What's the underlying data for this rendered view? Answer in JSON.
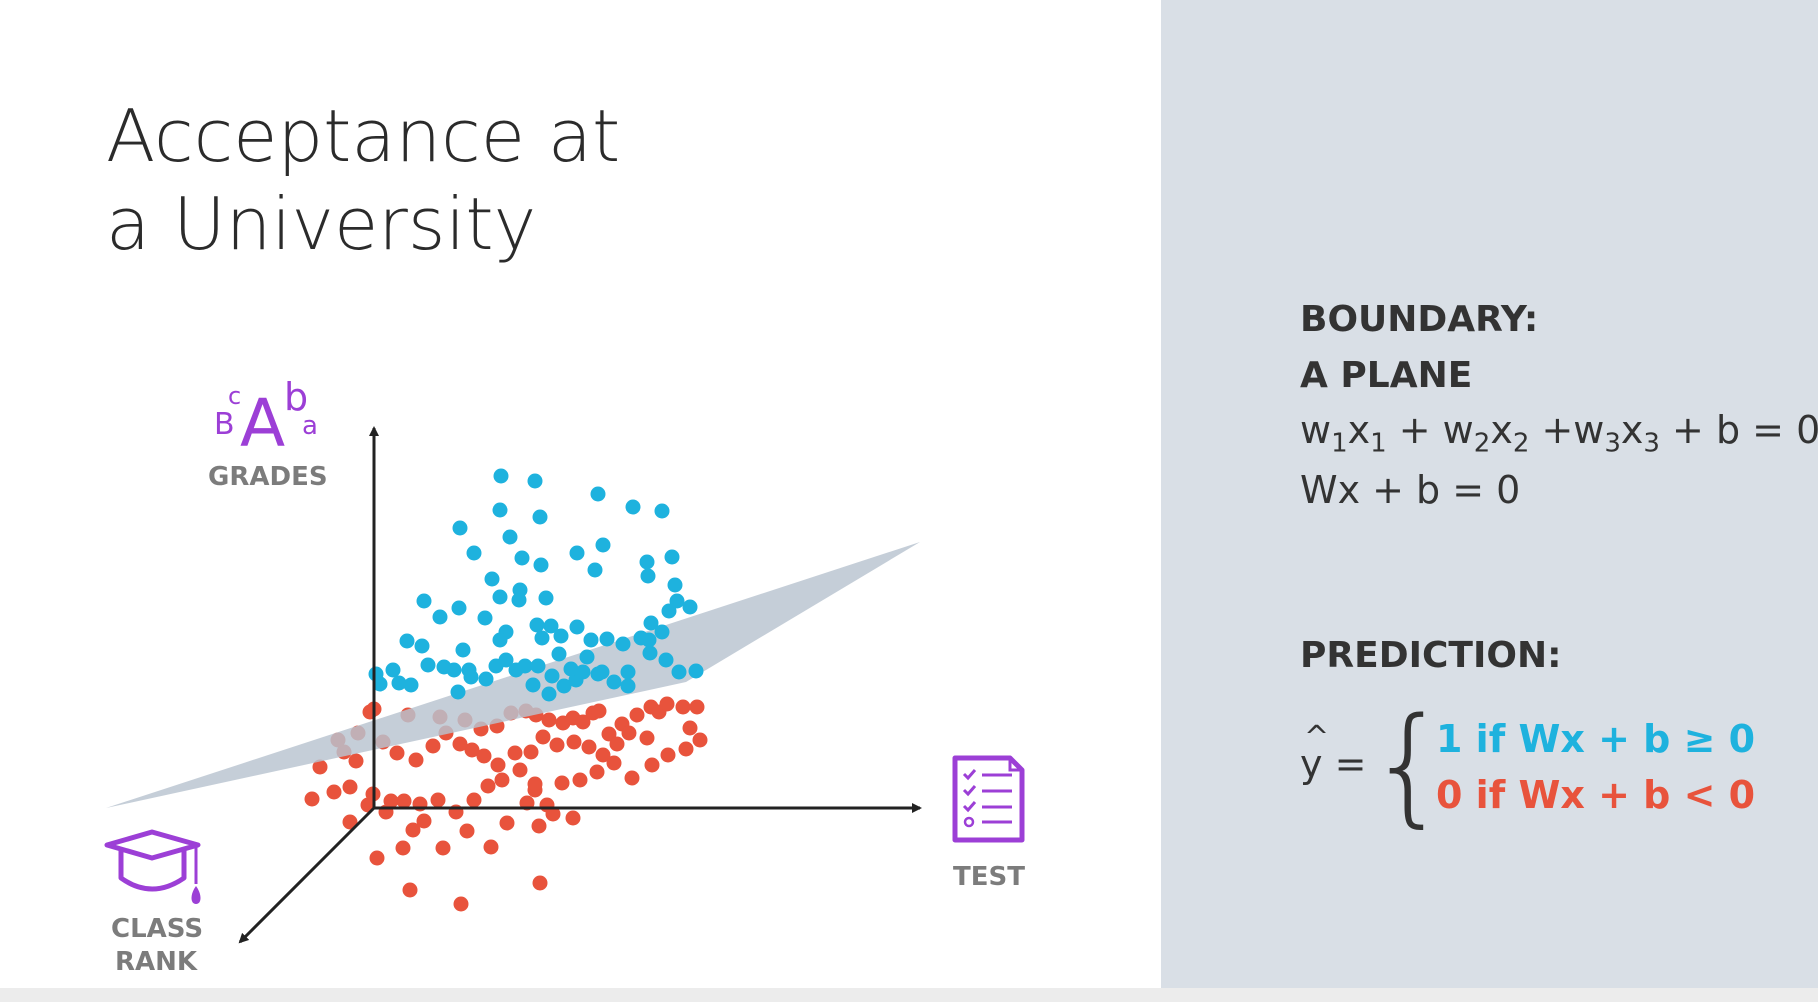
{
  "title": {
    "line1": "Acceptance at",
    "line2": "a University"
  },
  "axes": {
    "grades_label": "GRADES",
    "test_label": "TEST",
    "class_rank_label": [
      "CLASS",
      "RANK"
    ],
    "grades_icon_letters": [
      "B",
      "c",
      "A",
      "b",
      "a"
    ]
  },
  "icons": {
    "grades": "letter-grades-icon",
    "test": "test-sheet-icon",
    "class_rank": "graduation-cap-icon"
  },
  "boundary": {
    "heading_line1": "BOUNDARY:",
    "heading_line2": "A PLANE",
    "equation": [
      "w",
      "1",
      "x",
      "1",
      " + w",
      "2",
      "x",
      "2",
      " +w",
      "3",
      "x",
      "3",
      " + b = 0"
    ],
    "equation_vector": "Wx + b = 0"
  },
  "prediction": {
    "heading": "PREDICTION:",
    "lhs": "y =",
    "hat": "^",
    "brace": "{",
    "positive": "1 if Wx + b ≥ 0",
    "negative": "0 if Wx + b < 0"
  },
  "colors": {
    "positive": "#1eb2de",
    "negative": "#e8533c",
    "plane": "#b8c3cf",
    "icon_purple": "#9c3fd6",
    "axis": "#222222",
    "right_panel": "#d9dfe6"
  }
}
